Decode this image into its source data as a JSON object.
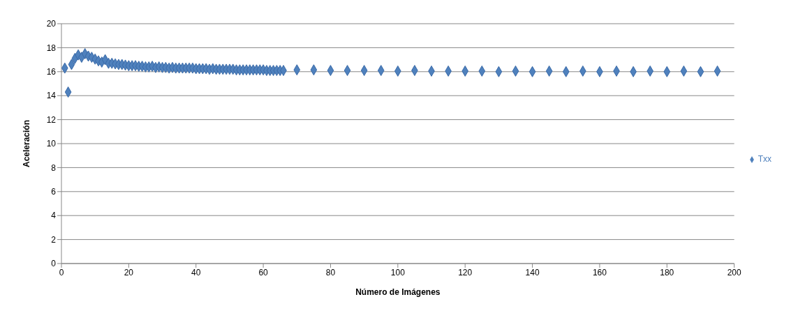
{
  "chart_data": {
    "type": "scatter",
    "xlabel": "Número de Imágenes",
    "ylabel": "Aceleración",
    "x": [
      1,
      2,
      3,
      4,
      5,
      6,
      7,
      8,
      9,
      10,
      11,
      12,
      13,
      14,
      15,
      16,
      17,
      18,
      19,
      20,
      21,
      22,
      23,
      24,
      25,
      26,
      27,
      28,
      29,
      30,
      31,
      32,
      33,
      34,
      35,
      36,
      37,
      38,
      39,
      40,
      41,
      42,
      43,
      44,
      45,
      46,
      47,
      48,
      49,
      50,
      51,
      52,
      53,
      54,
      55,
      56,
      57,
      58,
      59,
      60,
      61,
      62,
      63,
      64,
      65,
      66,
      70,
      75,
      80,
      85,
      90,
      95,
      100,
      105,
      110,
      115,
      120,
      125,
      130,
      135,
      140,
      145,
      150,
      155,
      160,
      165,
      170,
      175,
      180,
      185,
      190,
      195
    ],
    "series": [
      {
        "name": "Txx",
        "color": "#4f81bd",
        "values": [
          16.3,
          14.3,
          16.6,
          17.1,
          17.4,
          17.2,
          17.5,
          17.3,
          17.2,
          17.05,
          16.9,
          16.8,
          17.0,
          16.7,
          16.7,
          16.65,
          16.6,
          16.6,
          16.55,
          16.5,
          16.5,
          16.5,
          16.45,
          16.45,
          16.4,
          16.4,
          16.45,
          16.35,
          16.4,
          16.35,
          16.35,
          16.3,
          16.35,
          16.3,
          16.3,
          16.3,
          16.3,
          16.3,
          16.3,
          16.25,
          16.25,
          16.25,
          16.25,
          16.2,
          16.25,
          16.2,
          16.2,
          16.2,
          16.2,
          16.2,
          16.2,
          16.15,
          16.15,
          16.15,
          16.15,
          16.15,
          16.15,
          16.15,
          16.15,
          16.15,
          16.1,
          16.1,
          16.1,
          16.1,
          16.1,
          16.1,
          16.15,
          16.15,
          16.1,
          16.1,
          16.1,
          16.1,
          16.05,
          16.1,
          16.05,
          16.05,
          16.05,
          16.05,
          16.0,
          16.05,
          16.0,
          16.05,
          16.0,
          16.05,
          16.0,
          16.05,
          16.0,
          16.05,
          16.0,
          16.05,
          16.0,
          16.05
        ]
      }
    ],
    "xlim": [
      0,
      200
    ],
    "xticks": [
      0,
      20,
      40,
      60,
      80,
      100,
      120,
      140,
      160,
      180,
      200
    ],
    "ylim": [
      0,
      20
    ],
    "yticks": [
      0,
      2,
      4,
      6,
      8,
      10,
      12,
      14,
      16,
      18,
      20
    ],
    "grid": "y",
    "legend": "right",
    "marker": "diamond"
  }
}
